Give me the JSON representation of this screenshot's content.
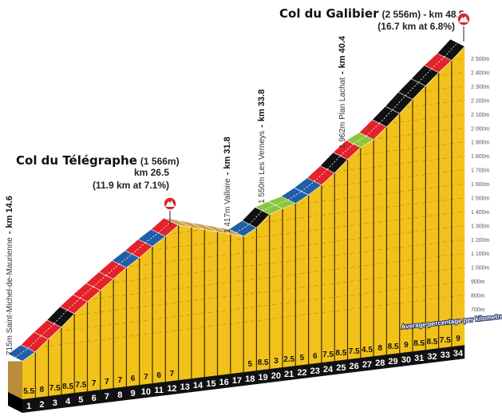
{
  "chart_data": {
    "type": "area",
    "title": "",
    "xlabel": "",
    "ylabel": "",
    "km_labels": [
      "1",
      "2",
      "3",
      "4",
      "5",
      "6",
      "7",
      "8",
      "9",
      "10",
      "11",
      "12",
      "13",
      "14",
      "15",
      "16",
      "17",
      "18",
      "19",
      "20",
      "21",
      "22",
      "23",
      "24",
      "25",
      "26",
      "27",
      "28",
      "29",
      "30",
      "31",
      "32",
      "33",
      "34"
    ],
    "gradients": [
      5.5,
      8,
      7.5,
      8.5,
      7.5,
      7,
      7,
      7,
      6,
      7,
      6,
      7,
      null,
      null,
      null,
      null,
      null,
      5,
      8.5,
      3,
      2.5,
      5,
      6,
      7.5,
      8.5,
      7.5,
      4.5,
      8,
      8.5,
      9,
      8.5,
      8.5,
      7.5,
      9
    ],
    "gradient_labels": [
      "5.5",
      "8",
      "7.5",
      "8.5",
      "7.5",
      "7",
      "7",
      "7",
      "6",
      "7",
      "6",
      "7",
      "",
      "",
      "",
      "",
      "",
      "5",
      "8.5",
      "3",
      "2.5",
      "5",
      "6",
      "7.5",
      "8.5",
      "7.5",
      "4.5",
      "8",
      "8.5",
      "9",
      "8.5",
      "8.5",
      "7.5",
      "9"
    ],
    "start_elevation": 715,
    "valloire_elevation": 1417,
    "y_ticks": [
      "700m",
      "800m",
      "900m",
      "1 000m",
      "1 100m",
      "1 200m",
      "1 300m",
      "1 400m",
      "1 500m",
      "1 600m",
      "1 700m",
      "1 800m",
      "1 900m",
      "2 000m",
      "2 100m",
      "2 200m",
      "2 300m",
      "2 400m",
      "2 500m"
    ],
    "ylim": [
      700,
      2556
    ],
    "legend_note": "Average percentage per kilometre",
    "colors": {
      "face": "#f2c21a",
      "easy": "#8cc63f",
      "moderate": "#1f5fa8",
      "hard": "#e3222b",
      "steep": "#111111",
      "descent": "#c9a04a",
      "side": "#b98d3a",
      "marker": "#d9262c"
    },
    "annotations": {
      "start": {
        "elev": "715m Saint-Michel-de-Maurienne",
        "km": "km 14.6"
      },
      "valloire": {
        "elev": "1 417m Valloire",
        "km": "km 31.8"
      },
      "verneys": {
        "elev": "1 550m Les Verneys",
        "km": "km 33.8"
      },
      "lachat": {
        "elev": "1 962m Plan Lachat",
        "km": "km 40.4"
      },
      "telegraphe": {
        "name": "Col du Télégraphe",
        "alt": "(1 566m)",
        "km": "km 26.5",
        "detail": "(11.9 km at 7.1%)"
      },
      "galibier": {
        "name": "Col du Galibier",
        "alt": "(2 556m)",
        "km": "- km 48.5",
        "detail": "(16.7 km at 6.8%)"
      }
    }
  }
}
